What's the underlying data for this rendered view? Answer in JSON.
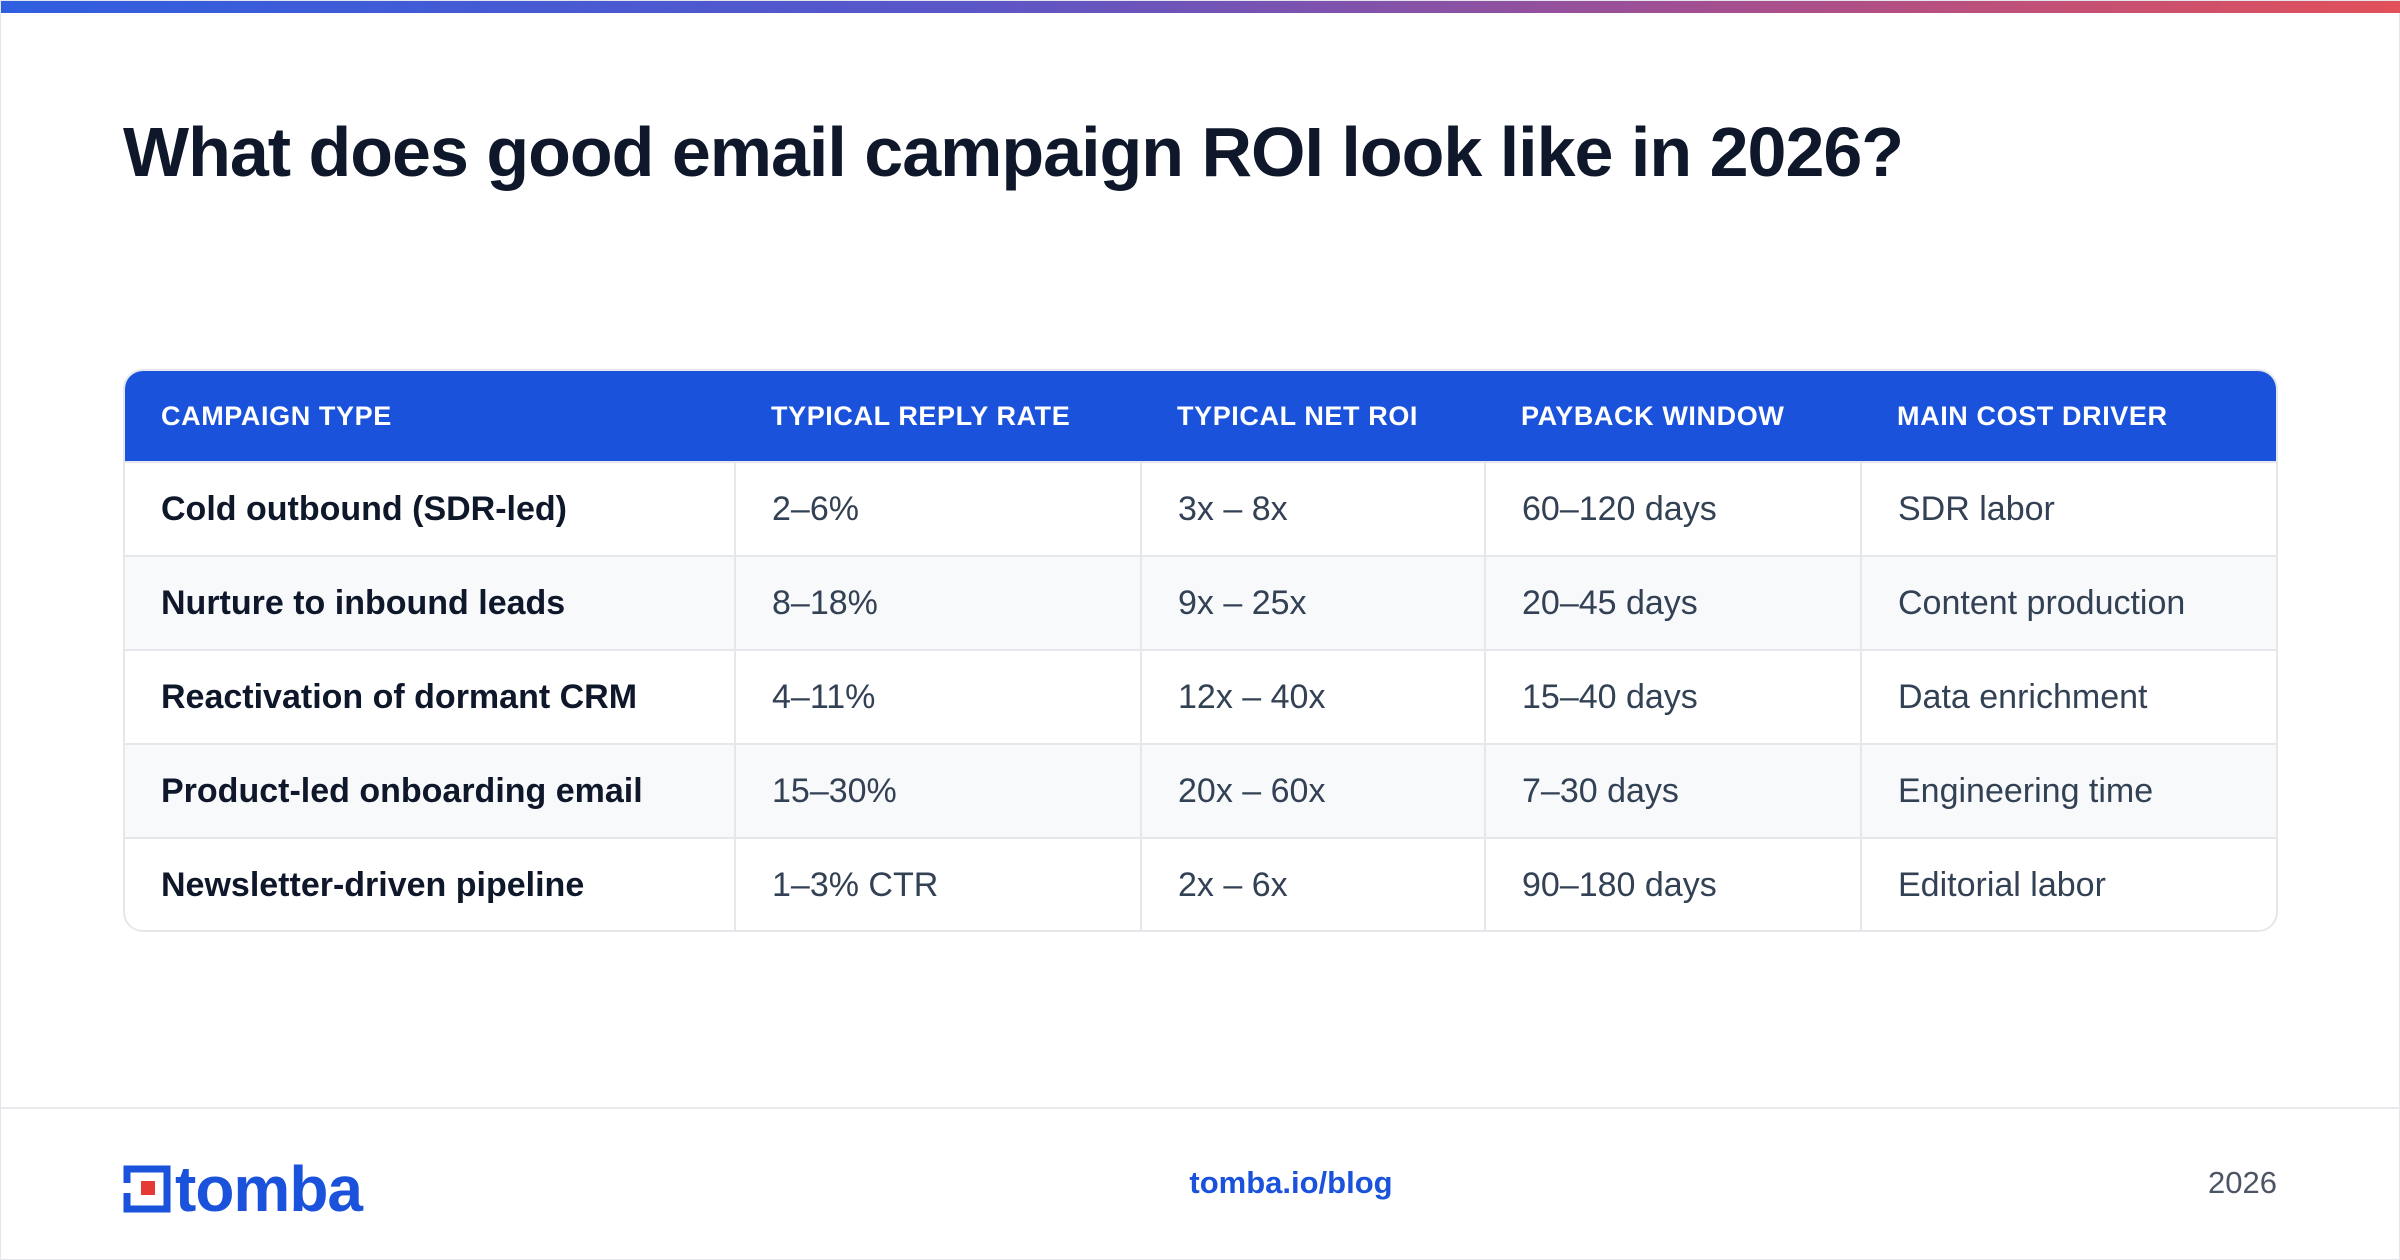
{
  "page": {
    "title": "What does good email campaign ROI look like in 2026?"
  },
  "table": {
    "headers": [
      "CAMPAIGN TYPE",
      "TYPICAL REPLY RATE",
      "TYPICAL NET ROI",
      "PAYBACK WINDOW",
      "MAIN COST DRIVER"
    ],
    "rows": [
      [
        "Cold outbound (SDR-led)",
        "2–6%",
        "3x – 8x",
        "60–120 days",
        "SDR labor"
      ],
      [
        "Nurture to inbound leads",
        "8–18%",
        "9x – 25x",
        "20–45 days",
        "Content production"
      ],
      [
        "Reactivation of dormant CRM",
        "4–11%",
        "12x – 40x",
        "15–40 days",
        "Data enrichment"
      ],
      [
        "Product-led onboarding email",
        "15–30%",
        "20x – 60x",
        "7–30 days",
        "Engineering time"
      ],
      [
        "Newsletter-driven pipeline",
        "1–3% CTR",
        "2x – 6x",
        "90–180 days",
        "Editorial labor"
      ]
    ]
  },
  "footer": {
    "logo_text": "tomba",
    "link": "tomba.io/blog",
    "year": "2026"
  },
  "colors": {
    "accent": "#1a52db",
    "logo_red": "#e53935",
    "title": "#0f172a"
  },
  "icons": {
    "logo": "tomba-logo-icon"
  }
}
